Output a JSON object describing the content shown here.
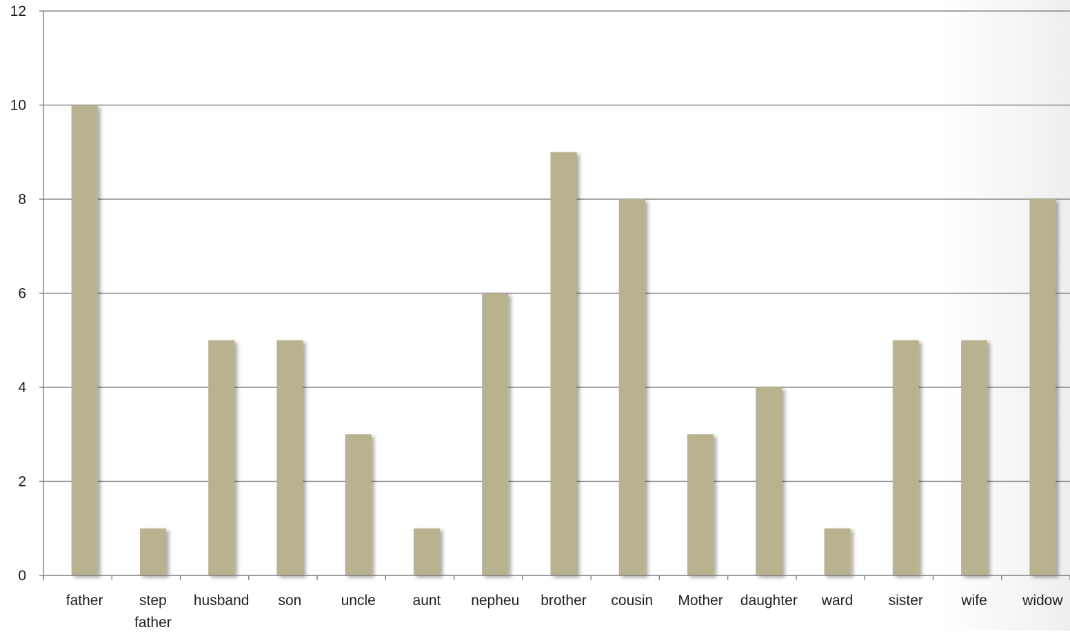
{
  "chart_data": {
    "type": "bar",
    "categories": [
      "father",
      "step father",
      "husband",
      "son",
      "uncle",
      "aunt",
      "nepheu",
      "brother",
      "cousin",
      "Mother",
      "daughter",
      "ward",
      "sister",
      "wife",
      "widow"
    ],
    "values": [
      10,
      1,
      5,
      5,
      3,
      1,
      6,
      9,
      8,
      3,
      4,
      1,
      5,
      5,
      8
    ],
    "ylim": [
      0,
      12
    ],
    "yticks": [
      0,
      2,
      4,
      6,
      8,
      10,
      12
    ],
    "grid": true,
    "legend": "none",
    "bar_color": "#b8b28f",
    "axis_color": "#7f7f7f",
    "grid_color": "#888888"
  }
}
